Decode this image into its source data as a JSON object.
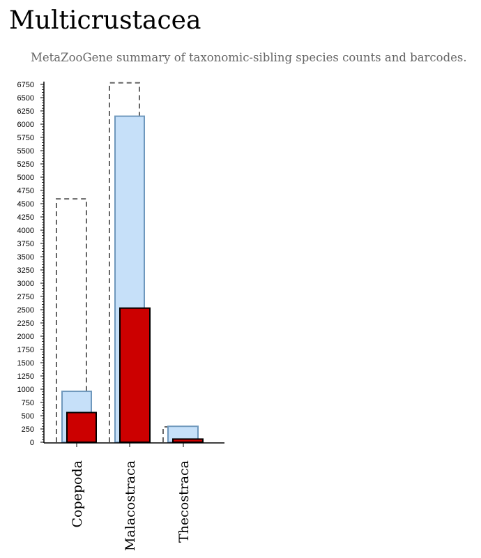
{
  "page": {
    "title": "Multicrustacea",
    "subtitle": "MetaZooGene summary of taxonomic-sibling species counts and barcodes."
  },
  "colors": {
    "dashed_outline": "#666666",
    "species_fill": "#c6e0f9",
    "species_stroke": "#6f98bd",
    "barcode_fill": "#cc0000",
    "barcode_stroke": "#000000",
    "axis": "#000000"
  },
  "chart_data": {
    "type": "bar",
    "categories": [
      "Copepoda",
      "Malacostraca",
      "Thecostraca"
    ],
    "series": [
      {
        "style": "dashed-outline",
        "values": [
          4590,
          6780,
          290
        ]
      },
      {
        "style": "light-blue",
        "values": [
          960,
          6150,
          300
        ]
      },
      {
        "style": "red",
        "values": [
          560,
          2530,
          60
        ]
      }
    ],
    "ylim": [
      0,
      6750
    ],
    "ytick_step": 250,
    "yticks": [
      0,
      250,
      500,
      750,
      1000,
      1250,
      1500,
      1750,
      2000,
      2250,
      2500,
      2750,
      3000,
      3250,
      3500,
      3750,
      4000,
      4250,
      4500,
      4750,
      5000,
      5250,
      5500,
      5750,
      6000,
      6250,
      6500,
      6750
    ],
    "legend": "none",
    "grid": false,
    "xlabel": "",
    "ylabel": ""
  }
}
